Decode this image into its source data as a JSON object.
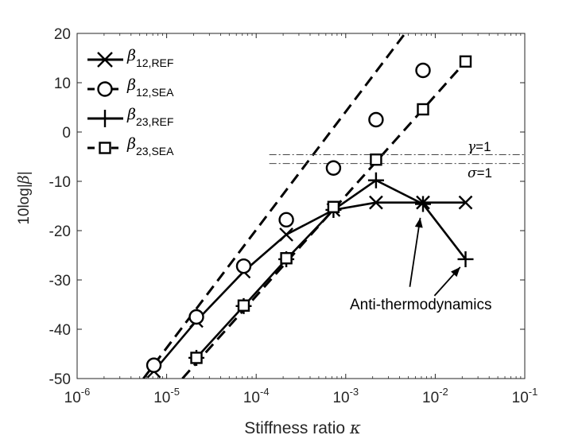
{
  "chart_data": {
    "type": "line",
    "title": "",
    "xlabel": "Stiffness ratio",
    "xlabel_symbol": "κ",
    "ylabel": "10log|",
    "ylabel_symbol": "β",
    "ylabel_end": "|",
    "xscale": "log",
    "xlim": [
      1e-06,
      0.1
    ],
    "ylim": [
      -50,
      20
    ],
    "xticks": [
      {
        "value": 1e-06,
        "base": "10",
        "exp": "-6"
      },
      {
        "value": 1e-05,
        "base": "10",
        "exp": "-5"
      },
      {
        "value": 0.0001,
        "base": "10",
        "exp": "-4"
      },
      {
        "value": 0.001,
        "base": "10",
        "exp": "-3"
      },
      {
        "value": 0.01,
        "base": "10",
        "exp": "-2"
      },
      {
        "value": 0.1,
        "base": "10",
        "exp": "-1"
      }
    ],
    "yticks": [
      {
        "value": 20,
        "label": "20"
      },
      {
        "value": 10,
        "label": "10"
      },
      {
        "value": 0,
        "label": "0"
      },
      {
        "value": -10,
        "label": "-10"
      },
      {
        "value": -20,
        "label": "-20"
      },
      {
        "value": -30,
        "label": "-30"
      },
      {
        "value": -40,
        "label": "-40"
      },
      {
        "value": -50,
        "label": "-50"
      }
    ],
    "grid": false,
    "legend_position": "top-left",
    "series": [
      {
        "name": "β12,REF",
        "sym": "β",
        "sub": "12,REF",
        "marker": "x",
        "line": "solid",
        "x": [
          7.2e-06,
          2.15e-05,
          7.25e-05,
          0.000217,
          0.00073,
          0.00218,
          0.0073,
          0.0218
        ],
        "y": [
          -48.5,
          -38.3,
          -28.3,
          -20.8,
          -15.8,
          -14.3,
          -14.3,
          -14.3
        ]
      },
      {
        "name": "β12,SEA",
        "sym": "β",
        "sub": "12,SEA",
        "marker": "circle",
        "line": "none",
        "x": [
          7.2e-06,
          2.15e-05,
          7.25e-05,
          0.000217,
          0.00073,
          0.00218,
          0.0073
        ],
        "y": [
          -47.3,
          -37.5,
          -27.2,
          -17.8,
          -7.3,
          2.5,
          12.5
        ]
      },
      {
        "name": "β23,REF",
        "sym": "β",
        "sub": "23,REF",
        "marker": "plus",
        "line": "solid",
        "x": [
          2.15e-05,
          7.25e-05,
          0.000217,
          0.00073,
          0.00218,
          0.0073,
          0.0218
        ],
        "y": [
          -45.8,
          -35.3,
          -25.8,
          -15.8,
          -9.8,
          -14.6,
          -25.8
        ]
      },
      {
        "name": "β23,SEA",
        "sym": "β",
        "sub": "23,SEA",
        "marker": "square",
        "line": "none",
        "x": [
          2.15e-05,
          7.25e-05,
          0.000217,
          0.00073,
          0.00218,
          0.0073,
          0.0218
        ],
        "y": [
          -45.8,
          -35.2,
          -25.6,
          -15.2,
          -5.6,
          4.6,
          14.3
        ]
      }
    ],
    "trend_lines": [
      {
        "x": [
          5.5e-06,
          0.0046
        ],
        "y": [
          -50,
          20
        ]
      },
      {
        "x": [
          1.5e-05,
          0.0242
        ],
        "y": [
          -50,
          15.2
        ]
      }
    ],
    "reference_lines": [
      {
        "sym": "γ",
        "text": "=1",
        "y": -4.6,
        "x_start": 0.00014
      },
      {
        "sym": "σ",
        "text": "=1",
        "y": -6.4,
        "x_start": 0.00014
      }
    ],
    "annotation": {
      "text": "Anti-thermodynamics",
      "arrows": [
        {
          "from": [
            0.0052,
            -31.4
          ],
          "to": [
            0.0068,
            -17.4
          ]
        },
        {
          "from": [
            0.0098,
            -33.2
          ],
          "to": [
            0.019,
            -27.4
          ]
        }
      ]
    }
  }
}
